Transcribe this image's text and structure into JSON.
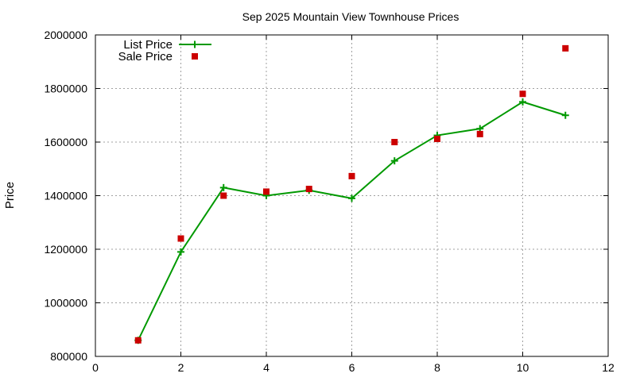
{
  "chart_data": {
    "type": "line",
    "title": "Sep 2025 Mountain View Townhouse Prices",
    "xlabel": "",
    "ylabel": "Price",
    "xlim": [
      0,
      12
    ],
    "ylim": [
      800000,
      2000000
    ],
    "xticks": [
      0,
      2,
      4,
      6,
      8,
      10,
      12
    ],
    "yticks": [
      800000,
      1000000,
      1200000,
      1400000,
      1600000,
      1800000,
      2000000
    ],
    "grid": true,
    "legend_position": "top-left",
    "series": [
      {
        "name": "List Price",
        "style": "line-points",
        "color": "#009900",
        "x": [
          1,
          2,
          3,
          4,
          5,
          6,
          7,
          8,
          9,
          10,
          11
        ],
        "y": [
          860000,
          1190000,
          1430000,
          1400000,
          1420000,
          1390000,
          1530000,
          1625000,
          1650000,
          1750000,
          1700000
        ]
      },
      {
        "name": "Sale Price",
        "style": "points",
        "color": "#cc0000",
        "x": [
          1,
          2,
          3,
          4,
          5,
          6,
          7,
          8,
          9,
          10,
          11
        ],
        "y": [
          860000,
          1240000,
          1400000,
          1415000,
          1425000,
          1473000,
          1600000,
          1612000,
          1630000,
          1780000,
          1950000
        ]
      }
    ]
  }
}
